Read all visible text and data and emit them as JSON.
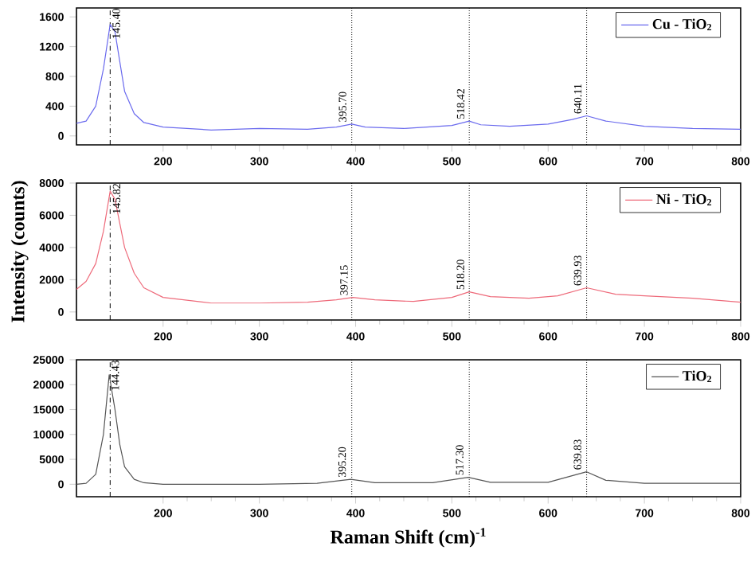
{
  "chart_data": [
    {
      "type": "line",
      "x": [
        110,
        120,
        130,
        138,
        145,
        150,
        155,
        160,
        170,
        180,
        200,
        250,
        300,
        350,
        380,
        396,
        410,
        450,
        500,
        518,
        530,
        560,
        600,
        625,
        640,
        660,
        700,
        750,
        800
      ],
      "series": [
        {
          "name": "Cu - TiO$_{2}$",
          "color": "#6a6aee",
          "values": [
            170,
            200,
            400,
            900,
            1500,
            1400,
            1000,
            600,
            300,
            180,
            120,
            80,
            100,
            90,
            120,
            160,
            120,
            100,
            140,
            200,
            150,
            130,
            160,
            220,
            270,
            200,
            130,
            100,
            90
          ]
        }
      ],
      "xlim": [
        110,
        800
      ],
      "xticks": [
        200,
        300,
        400,
        500,
        600,
        700,
        800
      ],
      "ylim": [
        -120,
        1720
      ],
      "yticks": [
        0,
        400,
        800,
        1200,
        1600
      ],
      "legend": "top right",
      "grid": false,
      "marker": "none",
      "line_style": "solid",
      "ref_lines": [
        {
          "axis": "x",
          "value": 145,
          "line_style": "dashed"
        },
        {
          "axis": "x",
          "value": 396,
          "line_style": "dotted"
        },
        {
          "axis": "x",
          "value": 518,
          "line_style": "dotted"
        },
        {
          "axis": "x",
          "value": 640,
          "line_style": "dotted"
        }
      ],
      "annotations": [
        {
          "text": "145.40",
          "x": 145.4,
          "y": 1500
        },
        {
          "text": "395.70",
          "x": 395.7,
          "y": 160
        },
        {
          "text": "518.42",
          "x": 518.42,
          "y": 200
        },
        {
          "text": "640.11",
          "x": 640.11,
          "y": 270
        }
      ]
    },
    {
      "type": "line",
      "x": [
        110,
        120,
        130,
        138,
        145,
        150,
        155,
        160,
        170,
        180,
        200,
        250,
        300,
        350,
        380,
        397,
        420,
        460,
        500,
        518,
        540,
        580,
        610,
        640,
        670,
        700,
        750,
        800
      ],
      "series": [
        {
          "name": "Ni - TiO$_{2}$",
          "color": "#ee6a7a",
          "values": [
            1400,
            1900,
            3000,
            5000,
            7500,
            7000,
            5500,
            4000,
            2400,
            1500,
            900,
            550,
            550,
            600,
            750,
            900,
            750,
            650,
            900,
            1250,
            950,
            850,
            1000,
            1500,
            1100,
            1000,
            850,
            600
          ]
        }
      ],
      "xlim": [
        110,
        800
      ],
      "xticks": [
        200,
        300,
        400,
        500,
        600,
        700,
        800
      ],
      "ylim": [
        -500,
        8000
      ],
      "yticks": [
        0,
        2000,
        4000,
        6000,
        8000
      ],
      "ylabel": "Intensity (counts)",
      "legend": "top right",
      "grid": false,
      "marker": "none",
      "line_style": "solid",
      "ref_lines": [
        {
          "axis": "x",
          "value": 145,
          "line_style": "dashed"
        },
        {
          "axis": "x",
          "value": 396,
          "line_style": "dotted"
        },
        {
          "axis": "x",
          "value": 518,
          "line_style": "dotted"
        },
        {
          "axis": "x",
          "value": 640,
          "line_style": "dotted"
        }
      ],
      "annotations": [
        {
          "text": "145.82",
          "x": 145.82,
          "y": 7500
        },
        {
          "text": "397.15",
          "x": 397.15,
          "y": 900
        },
        {
          "text": "518.20",
          "x": 518.2,
          "y": 1250
        },
        {
          "text": "639.93",
          "x": 639.93,
          "y": 1500
        }
      ]
    },
    {
      "type": "line",
      "x": [
        110,
        120,
        130,
        138,
        144,
        150,
        155,
        160,
        170,
        180,
        200,
        300,
        360,
        395,
        420,
        480,
        517,
        540,
        600,
        640,
        660,
        700,
        800
      ],
      "series": [
        {
          "name": "TiO$_{2}$",
          "color": "#555555",
          "values": [
            0,
            200,
            2000,
            10000,
            22000,
            15000,
            8000,
            3500,
            1000,
            300,
            0,
            0,
            200,
            1000,
            300,
            300,
            1400,
            400,
            400,
            2500,
            800,
            200,
            200
          ]
        }
      ],
      "xlim": [
        110,
        800
      ],
      "xticks": [
        200,
        300,
        400,
        500,
        600,
        700,
        800
      ],
      "ylim": [
        -2500,
        25000
      ],
      "yticks": [
        0,
        5000,
        10000,
        15000,
        20000,
        25000
      ],
      "xlabel": "Raman Shift (cm)$^{-1}$",
      "legend": "top right",
      "grid": false,
      "marker": "none",
      "line_style": "solid",
      "ref_lines": [
        {
          "axis": "x",
          "value": 145,
          "line_style": "dashed"
        },
        {
          "axis": "x",
          "value": 396,
          "line_style": "dotted"
        },
        {
          "axis": "x",
          "value": 518,
          "line_style": "dotted"
        },
        {
          "axis": "x",
          "value": 640,
          "line_style": "dotted"
        }
      ],
      "annotations": [
        {
          "text": "144.43",
          "x": 144.43,
          "y": 22000
        },
        {
          "text": "395.20",
          "x": 395.2,
          "y": 1000
        },
        {
          "text": "517.30",
          "x": 517.3,
          "y": 1400
        },
        {
          "text": "639.83",
          "x": 639.83,
          "y": 2500
        }
      ]
    }
  ]
}
